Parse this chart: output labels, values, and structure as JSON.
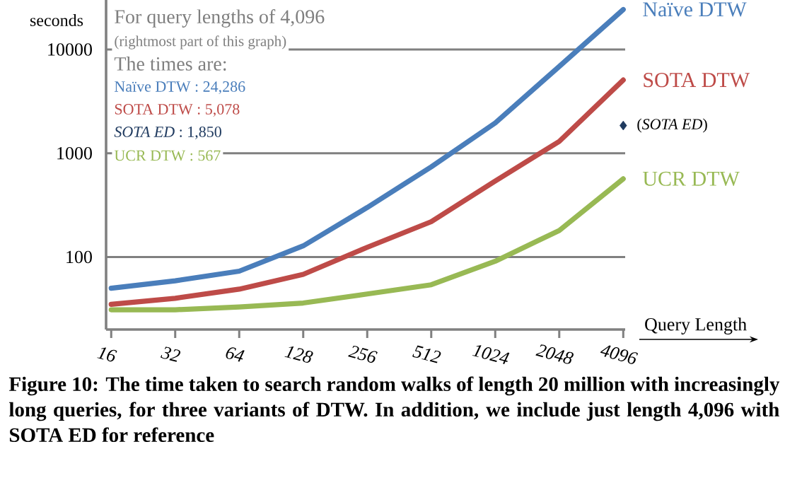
{
  "chart_data": {
    "type": "line",
    "ylabel": "seconds",
    "xlabel": "Query Length",
    "categories": [
      "16",
      "32",
      "64",
      "128",
      "256",
      "512",
      "1024",
      "2048",
      "4096"
    ],
    "series": [
      {
        "name": "Naïve DTW",
        "color": "#4a7ebb",
        "values": [
          50,
          59,
          73,
          128,
          300,
          740,
          1960,
          6870,
          24286
        ]
      },
      {
        "name": "SOTA DTW",
        "color": "#be4b48",
        "values": [
          35,
          40,
          49,
          68,
          124,
          219,
          540,
          1300,
          5078
        ]
      },
      {
        "name": "UCR DTW",
        "color": "#98b954",
        "values": [
          31,
          31,
          33,
          36,
          44,
          54,
          91,
          180,
          567
        ]
      },
      {
        "name": "(*SOTA ED*)",
        "type": "scatter",
        "marker": "diamond",
        "color": "#1f3a5f",
        "values": [
          null,
          null,
          null,
          null,
          null,
          null,
          null,
          null,
          1850
        ]
      }
    ],
    "ylim": [
      20,
      30000
    ],
    "yticks": [
      100,
      1000,
      10000
    ],
    "log": true,
    "grid": "y",
    "line_style": "solid",
    "annotations": [
      "For query lengths of 4,096",
      "(rightmost part of this graph)",
      "The times are:",
      "Naïve DTW : 24,286",
      "SOTA DTW : 5,078",
      "*SOTA ED* : 1,850",
      "UCR DTW : 567",
      "**Figure 10: The time taken to search random walks of length 20 million with increasingly long queries, for three variants of DTW. In addition, we include just length 4,096 with SOTA ED for reference**"
    ]
  }
}
